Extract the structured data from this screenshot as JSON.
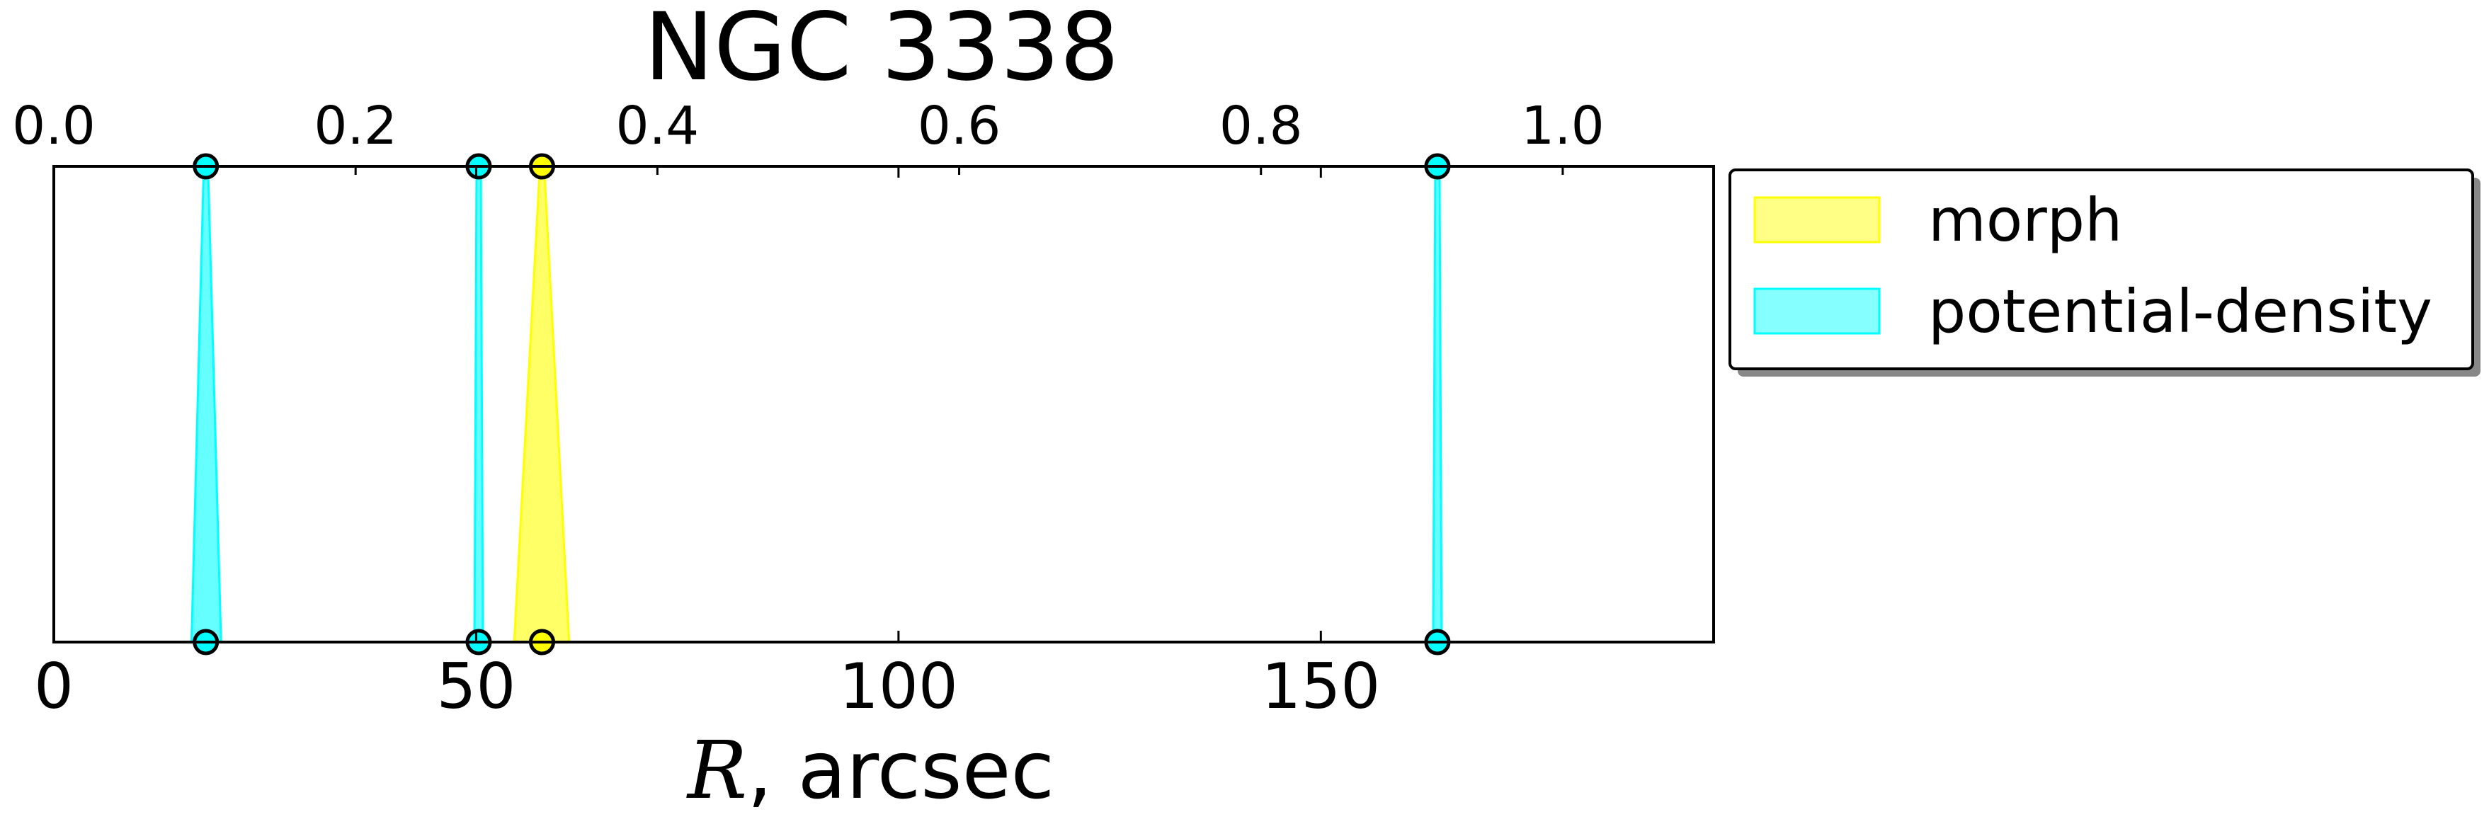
{
  "chart_data": {
    "type": "area",
    "title": "NGC 3338",
    "xlabel_italic": "R",
    "xlabel_rest": ", arcsec",
    "xlim": [
      0,
      196.5
    ],
    "top_xlim": [
      0,
      1.1
    ],
    "xticks_bottom": [
      0,
      50,
      100,
      150
    ],
    "xtick_labels_bottom": [
      "0",
      "50",
      "100",
      "150"
    ],
    "xticks_top": [
      0.0,
      0.2,
      0.4,
      0.6,
      0.8,
      1.0
    ],
    "xtick_labels_top": [
      "0.0",
      "0.2",
      "0.4",
      "0.6",
      "0.8",
      "1.0"
    ],
    "series": [
      {
        "name": "morph",
        "color": "#ffff33",
        "edge_color": "#ffff00",
        "bands": [
          {
            "center": 57.8,
            "bottom_range": [
              54.5,
              61.0
            ]
          }
        ]
      },
      {
        "name": "potential-density",
        "color": "#33ffff",
        "edge_color": "#00ffff",
        "bands": [
          {
            "center": 18.0,
            "bottom_range": [
              16.3,
              19.8
            ]
          },
          {
            "center": 50.3,
            "bottom_range": [
              49.8,
              50.8
            ]
          },
          {
            "center": 163.8,
            "bottom_range": [
              163.3,
              164.3
            ]
          }
        ]
      }
    ],
    "legend": [
      "morph",
      "potential-density"
    ],
    "legend_location": "outside right, top",
    "grid": false
  }
}
